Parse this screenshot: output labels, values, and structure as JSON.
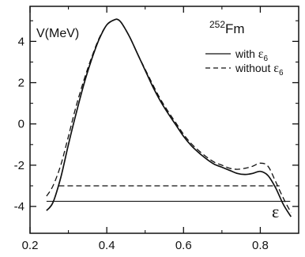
{
  "chart_data": {
    "type": "line",
    "y_axis_label": "V(MeV)",
    "x_axis_symbol": "ε",
    "nucleus_mass": "252",
    "nucleus_symbol": "Fm",
    "xlim": [
      0.2,
      0.9
    ],
    "ylim": [
      -5.3,
      5.7
    ],
    "x_ticks": [
      0.2,
      0.4,
      0.6,
      0.8
    ],
    "x_tick_labels": [
      "0.2",
      "0.4",
      "0.6",
      "0.8"
    ],
    "x_minor_ticks": [
      0.3,
      0.5,
      0.7
    ],
    "y_ticks": [
      -4,
      -2,
      0,
      2,
      4
    ],
    "y_tick_labels": [
      "-4",
      "-2",
      "0",
      "2",
      "4"
    ],
    "y_minor_ticks": [
      -3,
      -1,
      1,
      3,
      5
    ],
    "grid": false,
    "legend_position": "top-right",
    "series": [
      {
        "legend_label": "with",
        "legend_symbol": "ε",
        "legend_subscript": "6",
        "line_style": "solid",
        "color": "#111111",
        "x": [
          0.243,
          0.26,
          0.28,
          0.3,
          0.32,
          0.34,
          0.36,
          0.38,
          0.4,
          0.42,
          0.43,
          0.44,
          0.46,
          0.48,
          0.5,
          0.52,
          0.54,
          0.56,
          0.58,
          0.6,
          0.62,
          0.64,
          0.66,
          0.68,
          0.7,
          0.72,
          0.74,
          0.76,
          0.78,
          0.8,
          0.82,
          0.84,
          0.86,
          0.88
        ],
        "y": [
          -4.2,
          -3.8,
          -2.6,
          -1.0,
          0.5,
          1.9,
          3.1,
          4.1,
          4.8,
          5.05,
          5.05,
          4.85,
          4.2,
          3.4,
          2.6,
          1.8,
          1.1,
          0.5,
          -0.05,
          -0.6,
          -1.05,
          -1.4,
          -1.7,
          -1.95,
          -2.1,
          -2.25,
          -2.4,
          -2.45,
          -2.4,
          -2.3,
          -2.5,
          -3.1,
          -3.9,
          -4.5
        ]
      },
      {
        "legend_label": "without",
        "legend_symbol": "ε",
        "legend_subscript": "6",
        "line_style": "dashed",
        "color": "#111111",
        "x": [
          0.243,
          0.26,
          0.28,
          0.3,
          0.32,
          0.34,
          0.36,
          0.38,
          0.4,
          0.42,
          0.43,
          0.44,
          0.46,
          0.48,
          0.5,
          0.52,
          0.54,
          0.56,
          0.58,
          0.6,
          0.62,
          0.64,
          0.66,
          0.68,
          0.7,
          0.72,
          0.74,
          0.76,
          0.78,
          0.8,
          0.82,
          0.84,
          0.86,
          0.88
        ],
        "y": [
          -3.5,
          -3.0,
          -2.0,
          -0.6,
          0.85,
          2.1,
          3.2,
          4.15,
          4.8,
          5.05,
          5.05,
          4.85,
          4.2,
          3.4,
          2.65,
          1.9,
          1.2,
          0.6,
          0.05,
          -0.5,
          -0.95,
          -1.3,
          -1.6,
          -1.85,
          -2.0,
          -2.15,
          -2.2,
          -2.15,
          -2.05,
          -1.9,
          -2.05,
          -2.8,
          -3.6,
          -4.3
        ]
      }
    ],
    "reference_lines": [
      {
        "line_style": "solid",
        "y": -3.75,
        "x_start": 0.243,
        "x_end": 0.878
      },
      {
        "line_style": "dashed",
        "y": -3.0,
        "x_start": 0.275,
        "x_end": 0.85
      }
    ]
  }
}
